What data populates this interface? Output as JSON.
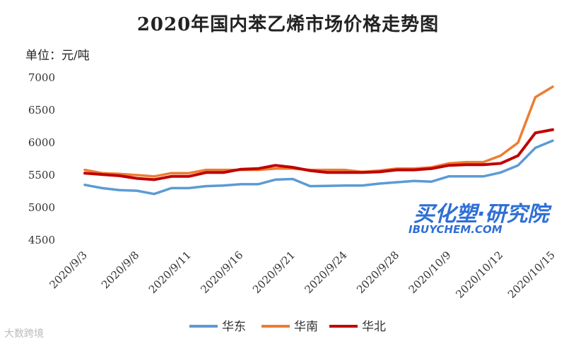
{
  "chart_data": {
    "type": "line",
    "title": "2020年国内苯乙烯市场价格走势图",
    "unit_label": "单位：元/吨",
    "ylim": [
      4500,
      7000
    ],
    "yticks": [
      4500,
      5000,
      5500,
      6000,
      6500,
      7000
    ],
    "x": [
      "2020/9/3",
      "2020/9/4",
      "2020/9/7",
      "2020/9/8",
      "2020/9/9",
      "2020/9/10",
      "2020/9/11",
      "2020/9/14",
      "2020/9/15",
      "2020/9/16",
      "2020/9/17",
      "2020/9/18",
      "2020/9/21",
      "2020/9/22",
      "2020/9/23",
      "2020/9/24",
      "2020/9/25",
      "2020/9/27",
      "2020/9/28",
      "2020/9/29",
      "2020/9/30",
      "2020/10/9",
      "2020/10/10",
      "2020/10/11",
      "2020/10/12",
      "2020/10/13",
      "2020/10/14",
      "2020/10/15"
    ],
    "xtick_labels": [
      "2020/9/3",
      "2020/9/8",
      "2020/9/11",
      "2020/9/16",
      "2020/9/21",
      "2020/9/24",
      "2020/9/28",
      "2020/10/9",
      "2020/10/12",
      "2020/10/15"
    ],
    "xtick_indices": [
      0,
      3,
      6,
      9,
      12,
      15,
      18,
      21,
      24,
      27
    ],
    "series": [
      {
        "name": "华东",
        "color": "#5b9bd5",
        "values": [
          5350,
          5300,
          5270,
          5260,
          5210,
          5300,
          5300,
          5330,
          5340,
          5360,
          5360,
          5430,
          5440,
          5330,
          5335,
          5340,
          5340,
          5370,
          5390,
          5410,
          5400,
          5480,
          5480,
          5480,
          5540,
          5650,
          5920,
          6030
        ]
      },
      {
        "name": "华南",
        "color": "#ed7d31",
        "values": [
          5580,
          5530,
          5520,
          5500,
          5480,
          5530,
          5530,
          5580,
          5580,
          5580,
          5580,
          5600,
          5600,
          5580,
          5580,
          5580,
          5550,
          5570,
          5600,
          5600,
          5620,
          5680,
          5700,
          5700,
          5800,
          6000,
          6700,
          6860
        ]
      },
      {
        "name": "华北",
        "color": "#c00000",
        "values": [
          5530,
          5510,
          5490,
          5450,
          5430,
          5480,
          5480,
          5540,
          5540,
          5590,
          5600,
          5650,
          5620,
          5570,
          5540,
          5540,
          5540,
          5550,
          5580,
          5580,
          5600,
          5650,
          5660,
          5660,
          5680,
          5800,
          6150,
          6200
        ]
      }
    ],
    "legend_position": "bottom",
    "grid": false
  },
  "watermark": {
    "cn": "买化塑·研究院",
    "en": "IBUYCHEM.COM"
  },
  "corner_mark": "大数跨境"
}
